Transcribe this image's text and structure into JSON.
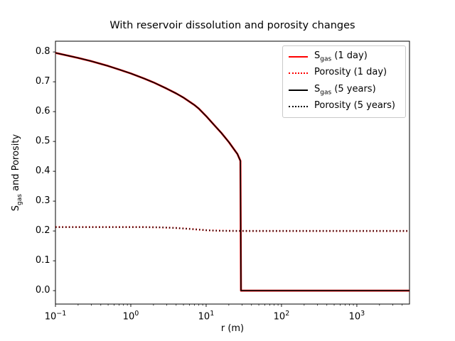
{
  "chart_data": {
    "type": "line",
    "title": "With reservoir dissolution and porosity changes",
    "xlabel": "r (m)",
    "ylabel_parts": {
      "pre": "S",
      "sub": "gas",
      "post": " and Porosity"
    },
    "xscale": "log",
    "xlim": [
      0.1,
      5000
    ],
    "ylim": [
      -0.045,
      0.836
    ],
    "grid": false,
    "legend_position": "upper right",
    "xticks": {
      "base": "10",
      "exponents": [
        "−1",
        "0",
        "1",
        "2",
        "3"
      ],
      "exponent_values": [
        -1,
        0,
        1,
        2,
        3
      ]
    },
    "yticks": [
      0.0,
      0.1,
      0.2,
      0.3,
      0.4,
      0.5,
      0.6,
      0.7,
      0.8
    ],
    "gas_front_radius_m": 29,
    "series": [
      {
        "name": "S_gas (1 day)",
        "label_parts": {
          "pre": "S",
          "sub": "gas",
          "post": " (1 day)"
        },
        "color": "#ff0000",
        "linestyle": "solid",
        "points": [
          [
            0.1,
            0.797
          ],
          [
            0.15,
            0.787
          ],
          [
            0.2,
            0.78
          ],
          [
            0.3,
            0.769
          ],
          [
            0.5,
            0.753
          ],
          [
            0.7,
            0.741
          ],
          [
            1,
            0.728
          ],
          [
            1.5,
            0.711
          ],
          [
            2,
            0.698
          ],
          [
            3,
            0.677
          ],
          [
            4,
            0.661
          ],
          [
            5,
            0.647
          ],
          [
            7,
            0.622
          ],
          [
            8,
            0.61
          ],
          [
            10,
            0.585
          ],
          [
            13,
            0.553
          ],
          [
            16,
            0.528
          ],
          [
            20,
            0.498
          ],
          [
            24,
            0.47
          ],
          [
            26,
            0.458
          ],
          [
            28.5,
            0.435
          ],
          [
            29,
            0.0
          ],
          [
            5000,
            0.0
          ]
        ]
      },
      {
        "name": "Porosity (1 day)",
        "label_parts": {
          "pre": "Porosity (1 day)",
          "sub": "",
          "post": ""
        },
        "color": "#ff0000",
        "linestyle": "dotted",
        "points": [
          [
            0.1,
            0.213
          ],
          [
            1.5,
            0.213
          ],
          [
            2.5,
            0.212
          ],
          [
            4,
            0.21
          ],
          [
            6,
            0.207
          ],
          [
            8,
            0.2045
          ],
          [
            10,
            0.2025
          ],
          [
            13,
            0.2012
          ],
          [
            18,
            0.2005
          ],
          [
            25,
            0.2001
          ],
          [
            30,
            0.2
          ],
          [
            5000,
            0.2
          ]
        ]
      },
      {
        "name": "S_gas (5 years)",
        "label_parts": {
          "pre": "S",
          "sub": "gas",
          "post": " (5 years)"
        },
        "color": "#000000",
        "linestyle": "solid",
        "points": [
          [
            0.1,
            0.797
          ],
          [
            0.15,
            0.787
          ],
          [
            0.2,
            0.78
          ],
          [
            0.3,
            0.769
          ],
          [
            0.5,
            0.753
          ],
          [
            0.7,
            0.741
          ],
          [
            1,
            0.728
          ],
          [
            1.5,
            0.711
          ],
          [
            2,
            0.698
          ],
          [
            3,
            0.677
          ],
          [
            4,
            0.661
          ],
          [
            5,
            0.647
          ],
          [
            7,
            0.622
          ],
          [
            8,
            0.61
          ],
          [
            10,
            0.585
          ],
          [
            13,
            0.553
          ],
          [
            16,
            0.528
          ],
          [
            20,
            0.498
          ],
          [
            24,
            0.47
          ],
          [
            26,
            0.458
          ],
          [
            28.5,
            0.435
          ],
          [
            29,
            0.0
          ],
          [
            5000,
            0.0
          ]
        ]
      },
      {
        "name": "Porosity (5 years)",
        "label_parts": {
          "pre": "Porosity (5 years)",
          "sub": "",
          "post": ""
        },
        "color": "#000000",
        "linestyle": "dotted",
        "points": [
          [
            0.1,
            0.213
          ],
          [
            1.5,
            0.213
          ],
          [
            2.5,
            0.212
          ],
          [
            4,
            0.21
          ],
          [
            6,
            0.207
          ],
          [
            8,
            0.2045
          ],
          [
            10,
            0.2025
          ],
          [
            13,
            0.2012
          ],
          [
            18,
            0.2005
          ],
          [
            25,
            0.2001
          ],
          [
            30,
            0.2
          ],
          [
            5000,
            0.2
          ]
        ]
      }
    ]
  }
}
